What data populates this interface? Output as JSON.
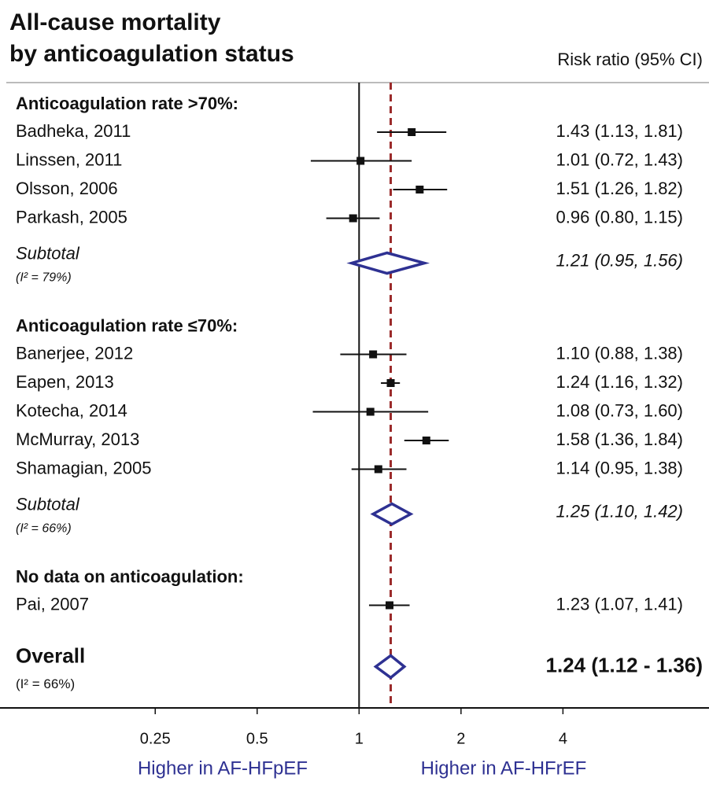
{
  "chart_data": {
    "type": "forest",
    "title": [
      "All-cause mortality",
      "by anticoagulation status"
    ],
    "column_header": "Risk ratio (95% CI)",
    "log_scale": true,
    "xlim": [
      0.087,
      10.8
    ],
    "xticks": [
      0.25,
      0.5,
      1,
      2,
      4
    ],
    "reference": 1,
    "marker_color": "#111111",
    "summary_color": "#2e3192",
    "dashed_color": "#9b2a2a",
    "direction_labels": [
      "Higher in AF-HFpEF",
      "Higher in AF-HFrEF"
    ],
    "groups": [
      {
        "name": "Anticoagulation rate >70%:",
        "studies": [
          {
            "label": "Badheka, 2011",
            "estimate": 1.43,
            "lower": 1.13,
            "upper": 1.81,
            "ci_label": "1.43 (1.13, 1.81)"
          },
          {
            "label": "Linssen, 2011",
            "estimate": 1.01,
            "lower": 0.72,
            "upper": 1.43,
            "ci_label": "1.01 (0.72, 1.43)"
          },
          {
            "label": "Olsson, 2006",
            "estimate": 1.51,
            "lower": 1.26,
            "upper": 1.82,
            "ci_label": "1.51 (1.26, 1.82)"
          },
          {
            "label": "Parkash, 2005",
            "estimate": 0.96,
            "lower": 0.8,
            "upper": 1.15,
            "ci_label": "0.96 (0.80, 1.15)"
          }
        ],
        "subtotal": {
          "label": "Subtotal",
          "heterogeneity": "(I² = 79%)",
          "estimate": 1.21,
          "lower": 0.95,
          "upper": 1.56,
          "ci_label": "1.21 (0.95, 1.56)"
        }
      },
      {
        "name": "Anticoagulation rate ≤70%:",
        "studies": [
          {
            "label": "Banerjee, 2012",
            "estimate": 1.1,
            "lower": 0.88,
            "upper": 1.38,
            "ci_label": "1.10 (0.88, 1.38)"
          },
          {
            "label": "Eapen, 2013",
            "estimate": 1.24,
            "lower": 1.16,
            "upper": 1.32,
            "ci_label": "1.24 (1.16, 1.32)"
          },
          {
            "label": "Kotecha, 2014",
            "estimate": 1.08,
            "lower": 0.73,
            "upper": 1.6,
            "ci_label": "1.08 (0.73, 1.60)"
          },
          {
            "label": "McMurray, 2013",
            "estimate": 1.58,
            "lower": 1.36,
            "upper": 1.84,
            "ci_label": "1.58 (1.36, 1.84)"
          },
          {
            "label": "Shamagian, 2005",
            "estimate": 1.14,
            "lower": 0.95,
            "upper": 1.38,
            "ci_label": "1.14 (0.95, 1.38)"
          }
        ],
        "subtotal": {
          "label": "Subtotal",
          "heterogeneity": "(I² = 66%)",
          "estimate": 1.25,
          "lower": 1.1,
          "upper": 1.42,
          "ci_label": "1.25 (1.10, 1.42)"
        }
      },
      {
        "name": "No data on anticoagulation:",
        "studies": [
          {
            "label": "Pai, 2007",
            "estimate": 1.23,
            "lower": 1.07,
            "upper": 1.41,
            "ci_label": "1.23 (1.07, 1.41)"
          }
        ]
      }
    ],
    "overall": {
      "label": "Overall",
      "heterogeneity": "(I² = 66%)",
      "estimate": 1.24,
      "lower": 1.12,
      "upper": 1.36,
      "ci_label": "1.24 (1.12 - 1.36)"
    }
  }
}
